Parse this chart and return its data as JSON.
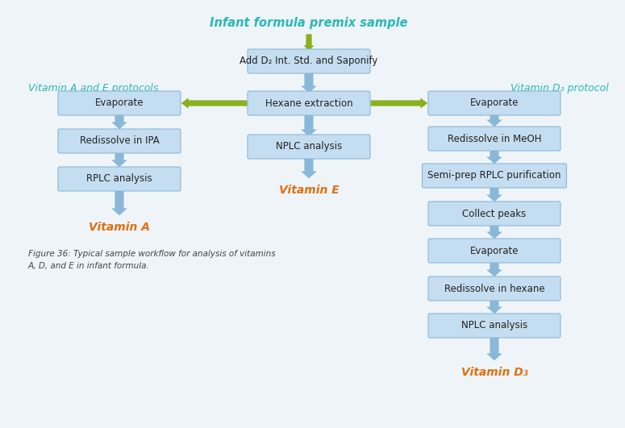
{
  "bg_color": "#eef4f8",
  "box_color": "#c5ddf0",
  "box_edge_color": "#8ab8d8",
  "arrow_color_blue": "#8ab8d8",
  "arrow_color_green": "#8ab020",
  "title_color": "#2ab8b8",
  "protocol_color": "#2ab8b8",
  "vitamin_label_color": "#e07010",
  "title_text": "Infant formula premix sample",
  "left_protocol_label": "Vitamin A and E protocols",
  "right_protocol_label": "Vitamin D₃ protocol",
  "center_boxes": [
    "Add D₂ Int. Std. and Saponify",
    "Hexane extraction",
    "NPLC analysis"
  ],
  "left_boxes": [
    "Evaporate",
    "Redissolve in IPA",
    "RPLC analysis"
  ],
  "right_boxes": [
    "Evaporate",
    "Redissolve in MeOH",
    "Semi-prep RPLC purification",
    "Collect peaks",
    "Evaporate",
    "Redissolve in hexane",
    "NPLC analysis"
  ],
  "vitamin_e_label": "Vitamin E",
  "vitamin_a_label": "Vitamin A",
  "vitamin_d_label": "Vitamin D₃",
  "figure_caption_line1": "Figure 36: Typical sample workflow for analysis of vitamins",
  "figure_caption_line2": "A, D, and E in infant formula."
}
